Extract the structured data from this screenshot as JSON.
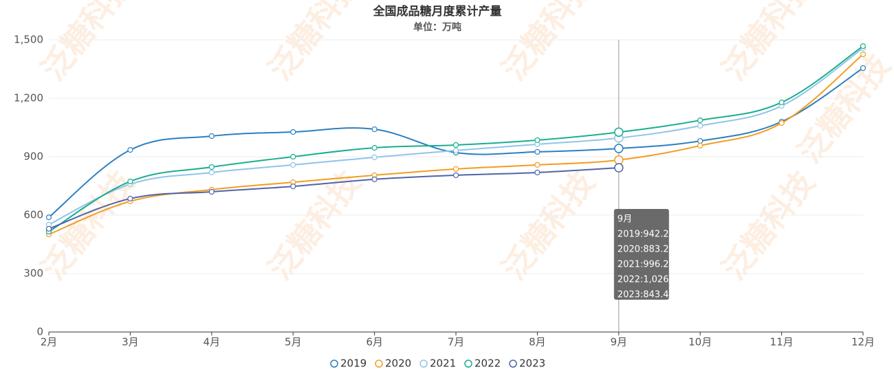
{
  "chart_data": {
    "type": "line",
    "title": "全国成品糖月度累计产量",
    "subtitle": "单位：万吨",
    "watermark": "泛糖科技",
    "categories": [
      "2月",
      "3月",
      "4月",
      "5月",
      "6月",
      "7月",
      "8月",
      "9月",
      "10月",
      "11月",
      "12月"
    ],
    "series": [
      {
        "name": "2019",
        "color": "#2b7fc1",
        "values": [
          589,
          935,
          1006,
          1027,
          1041,
          921,
          925,
          942.2,
          981,
          1080,
          1355
        ]
      },
      {
        "name": "2020",
        "color": "#f39c1f",
        "values": [
          501,
          671,
          731,
          769,
          805,
          837,
          858,
          883.2,
          957,
          1073,
          1426
        ]
      },
      {
        "name": "2021",
        "color": "#8fc4ea",
        "values": [
          551,
          759,
          819,
          858,
          897,
          932,
          964,
          996.2,
          1059,
          1161,
          1458
        ]
      },
      {
        "name": "2022",
        "color": "#1aae8e",
        "values": [
          515,
          773,
          847,
          900,
          946,
          960,
          985,
          1026,
          1087,
          1179,
          1468
        ]
      },
      {
        "name": "2023",
        "color": "#5064a8",
        "values": [
          530,
          685,
          720,
          748,
          784,
          805,
          819,
          843.4,
          null,
          null,
          null
        ]
      }
    ],
    "ylim": [
      0,
      1500
    ],
    "yticks": [
      0,
      300,
      600,
      900,
      {
        "value": 1200,
        "label": "1,200"
      },
      {
        "value": 1500,
        "label": "1,500"
      }
    ],
    "grid": true,
    "legend": "bottom",
    "tooltip": {
      "title": "9月",
      "lines": [
        "2019:942.2",
        "2020:883.2",
        "2021:996.2",
        "2022:1,026",
        "2023:843.4"
      ]
    }
  }
}
